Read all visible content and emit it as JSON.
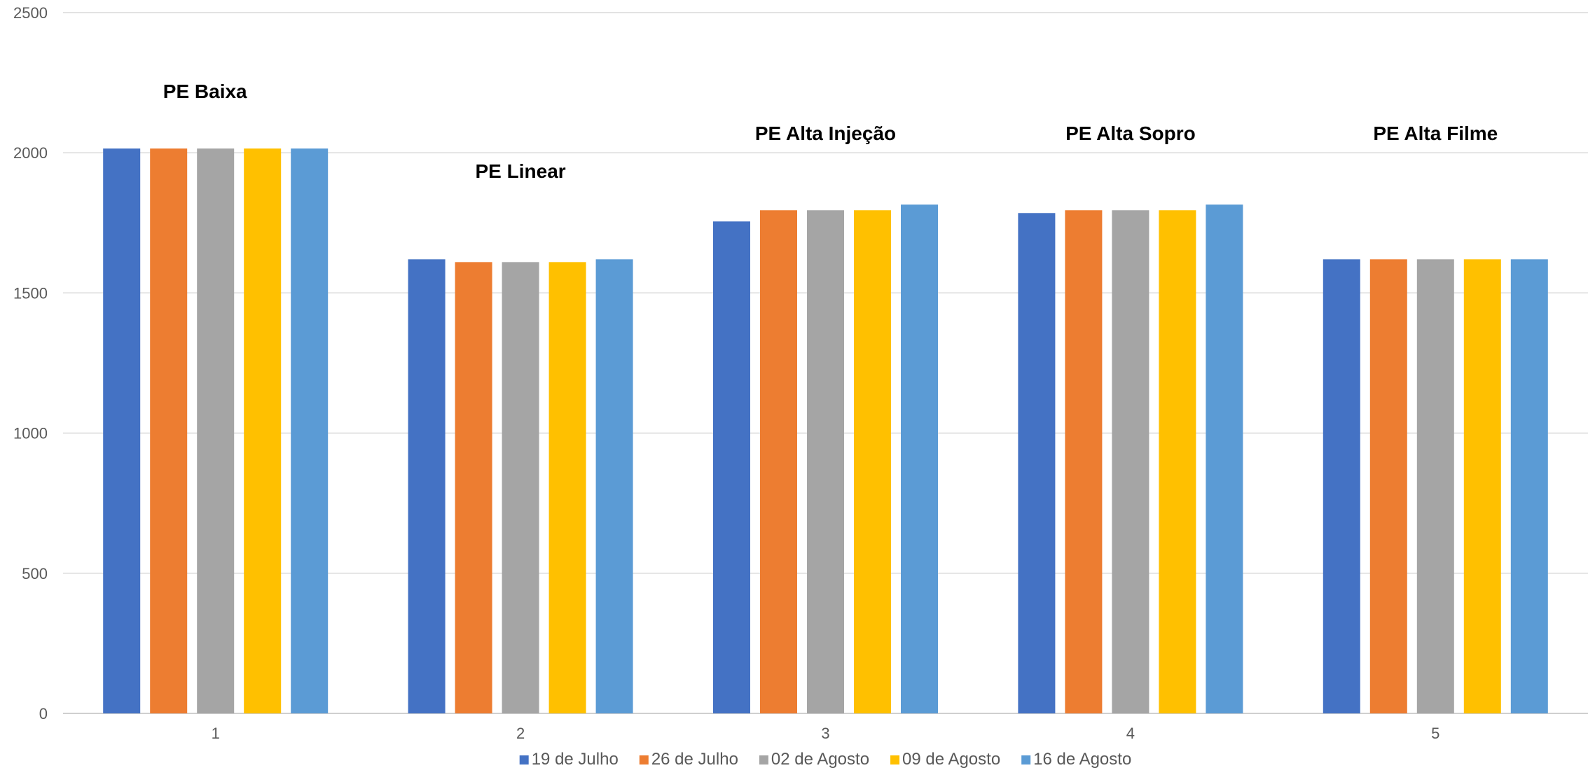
{
  "chart_data": {
    "type": "bar",
    "title": "",
    "xlabel": "",
    "ylabel": "",
    "categories": [
      "1",
      "2",
      "3",
      "4",
      "5"
    ],
    "ylim": [
      0,
      2500
    ],
    "yticks": [
      0,
      500,
      1000,
      1500,
      2000,
      2500
    ],
    "grid": true,
    "legend_position": "bottom",
    "series": [
      {
        "name": "19 de Julho",
        "color": "#4472C4",
        "values": [
          2015,
          1620,
          1755,
          1785,
          1620
        ]
      },
      {
        "name": "26 de Julho",
        "color": "#ED7D31",
        "values": [
          2015,
          1610,
          1795,
          1795,
          1620
        ]
      },
      {
        "name": "02 de Agosto",
        "color": "#A5A5A5",
        "values": [
          2015,
          1610,
          1795,
          1795,
          1620
        ]
      },
      {
        "name": "09 de Agosto",
        "color": "#FFC000",
        "values": [
          2015,
          1610,
          1795,
          1795,
          1620
        ]
      },
      {
        "name": "16 de Agosto",
        "color": "#5B9BD5",
        "values": [
          2015,
          1620,
          1815,
          1815,
          1620
        ]
      }
    ],
    "annotations": [
      {
        "category": "1",
        "text": "PE Baixa",
        "y": 2195
      },
      {
        "category": "2",
        "text": "PE Linear",
        "y": 1910
      },
      {
        "category": "3",
        "text": "PE Alta Injeção",
        "y": 2045
      },
      {
        "category": "4",
        "text": "PE Alta Sopro",
        "y": 2045
      },
      {
        "category": "5",
        "text": "PE Alta Filme",
        "y": 2045
      }
    ]
  }
}
